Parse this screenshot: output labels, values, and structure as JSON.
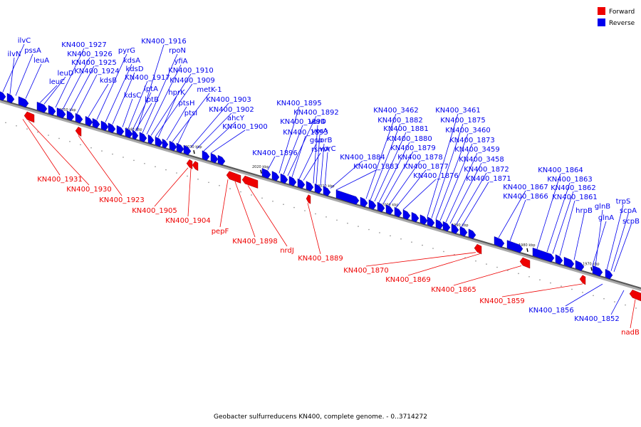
{
  "legend": [
    {
      "label": "Forward",
      "color": "#ee0000"
    },
    {
      "label": "Reverse",
      "color": "#0000ee"
    }
  ],
  "caption": "Geobacter sulfurreducens KN400, complete genome. - 0..3714272",
  "axis_ticks": [
    "2050 kbp",
    "2040 kbp",
    "2030 kbp",
    "2020 kbp",
    "2010 kbp",
    "2000 kbp",
    "1990 kbp",
    "1980 kbp",
    "1970 kbp"
  ],
  "reverse_genes": [
    "ilvC",
    "ilvN",
    "pssA",
    "leuA",
    "leuD",
    "leuC",
    "KN400_1927",
    "KN400_1926",
    "KN400_1925",
    "KN400_1924",
    "kdsB",
    "pyrG",
    "kdsA",
    "kdsD",
    "kdsC",
    "KN400_1917",
    "KN400_1916",
    "rpoN",
    "yfiA",
    "KN400_1910",
    "KN400_1909",
    "lptA",
    "lptB",
    "hprK",
    "metK-1",
    "ptsH",
    "ptsI",
    "KN400_1903",
    "KN400_1902",
    "ahcY",
    "KN400_1900",
    "KN400_1896",
    "KN400_1895",
    "KN400_1892",
    "KN400_1894",
    "KN400_1893",
    "gcp",
    "rsmA",
    "vorD",
    "vorA",
    "vorB",
    "vorC",
    "KN400_1884",
    "KN400_1883",
    "KN400_3462",
    "KN400_1882",
    "KN400_1881",
    "KN400_1880",
    "KN400_1879",
    "KN400_1878",
    "KN400_1877",
    "KN400_1876",
    "KN400_3461",
    "KN400_1875",
    "KN400_3460",
    "KN400_1873",
    "KN400_3459",
    "KN400_3458",
    "KN400_1872",
    "KN400_1871",
    "KN400_1867",
    "KN400_1866",
    "KN400_1864",
    "KN400_1863",
    "KN400_1862",
    "KN400_1861",
    "hrpB",
    "glnB",
    "glnA",
    "trpS",
    "scpA",
    "scpB",
    "KN400_1856",
    "KN400_1852"
  ],
  "forward_genes": [
    "KN400_1931",
    "KN400_1930",
    "KN400_1923",
    "KN400_1905",
    "KN400_1904",
    "pepF",
    "KN400_1898",
    "nrdJ",
    "KN400_1889",
    "KN400_1870",
    "KN400_1869",
    "KN400_1865",
    "KN400_1859",
    "nadB"
  ]
}
